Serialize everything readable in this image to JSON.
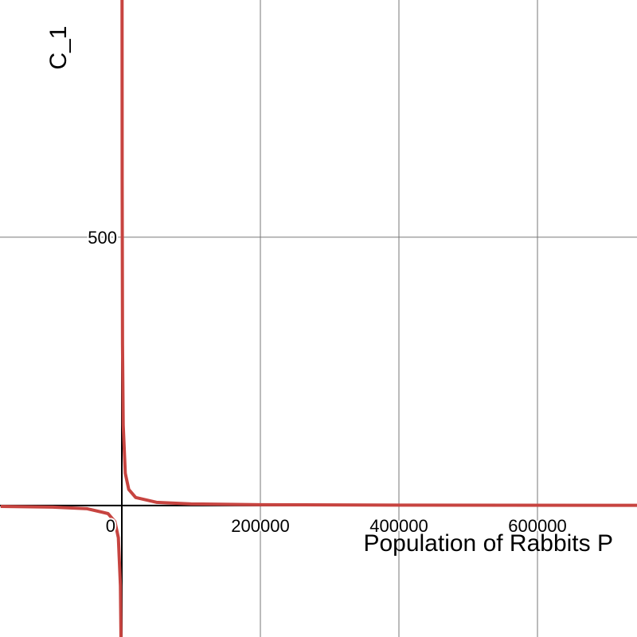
{
  "chart_data": {
    "type": "line",
    "x_label": "Population of Rabbits P",
    "y_label": "C_1",
    "xlim": [
      -175862,
      743678
    ],
    "ylim": [
      -245,
      942
    ],
    "xticks": [
      0,
      200000,
      400000,
      600000
    ],
    "yticks": [
      500
    ],
    "grid": true,
    "series": [
      {
        "color": "#c74440",
        "x": [
          -175000,
          -100000,
          -50000,
          -20000,
          -10000,
          -5000,
          -2000,
          -1200,
          null,
          300,
          500,
          1000,
          2000,
          5000,
          10000,
          20000,
          50000,
          100000,
          200000,
          400000,
          750000
        ],
        "values": [
          -1.7,
          -3,
          -6,
          -15,
          -30,
          -60,
          -150,
          -250,
          null,
          1000,
          600,
          300,
          150,
          60,
          30,
          15,
          6,
          3,
          1.5,
          0.75,
          0.4
        ]
      }
    ]
  }
}
